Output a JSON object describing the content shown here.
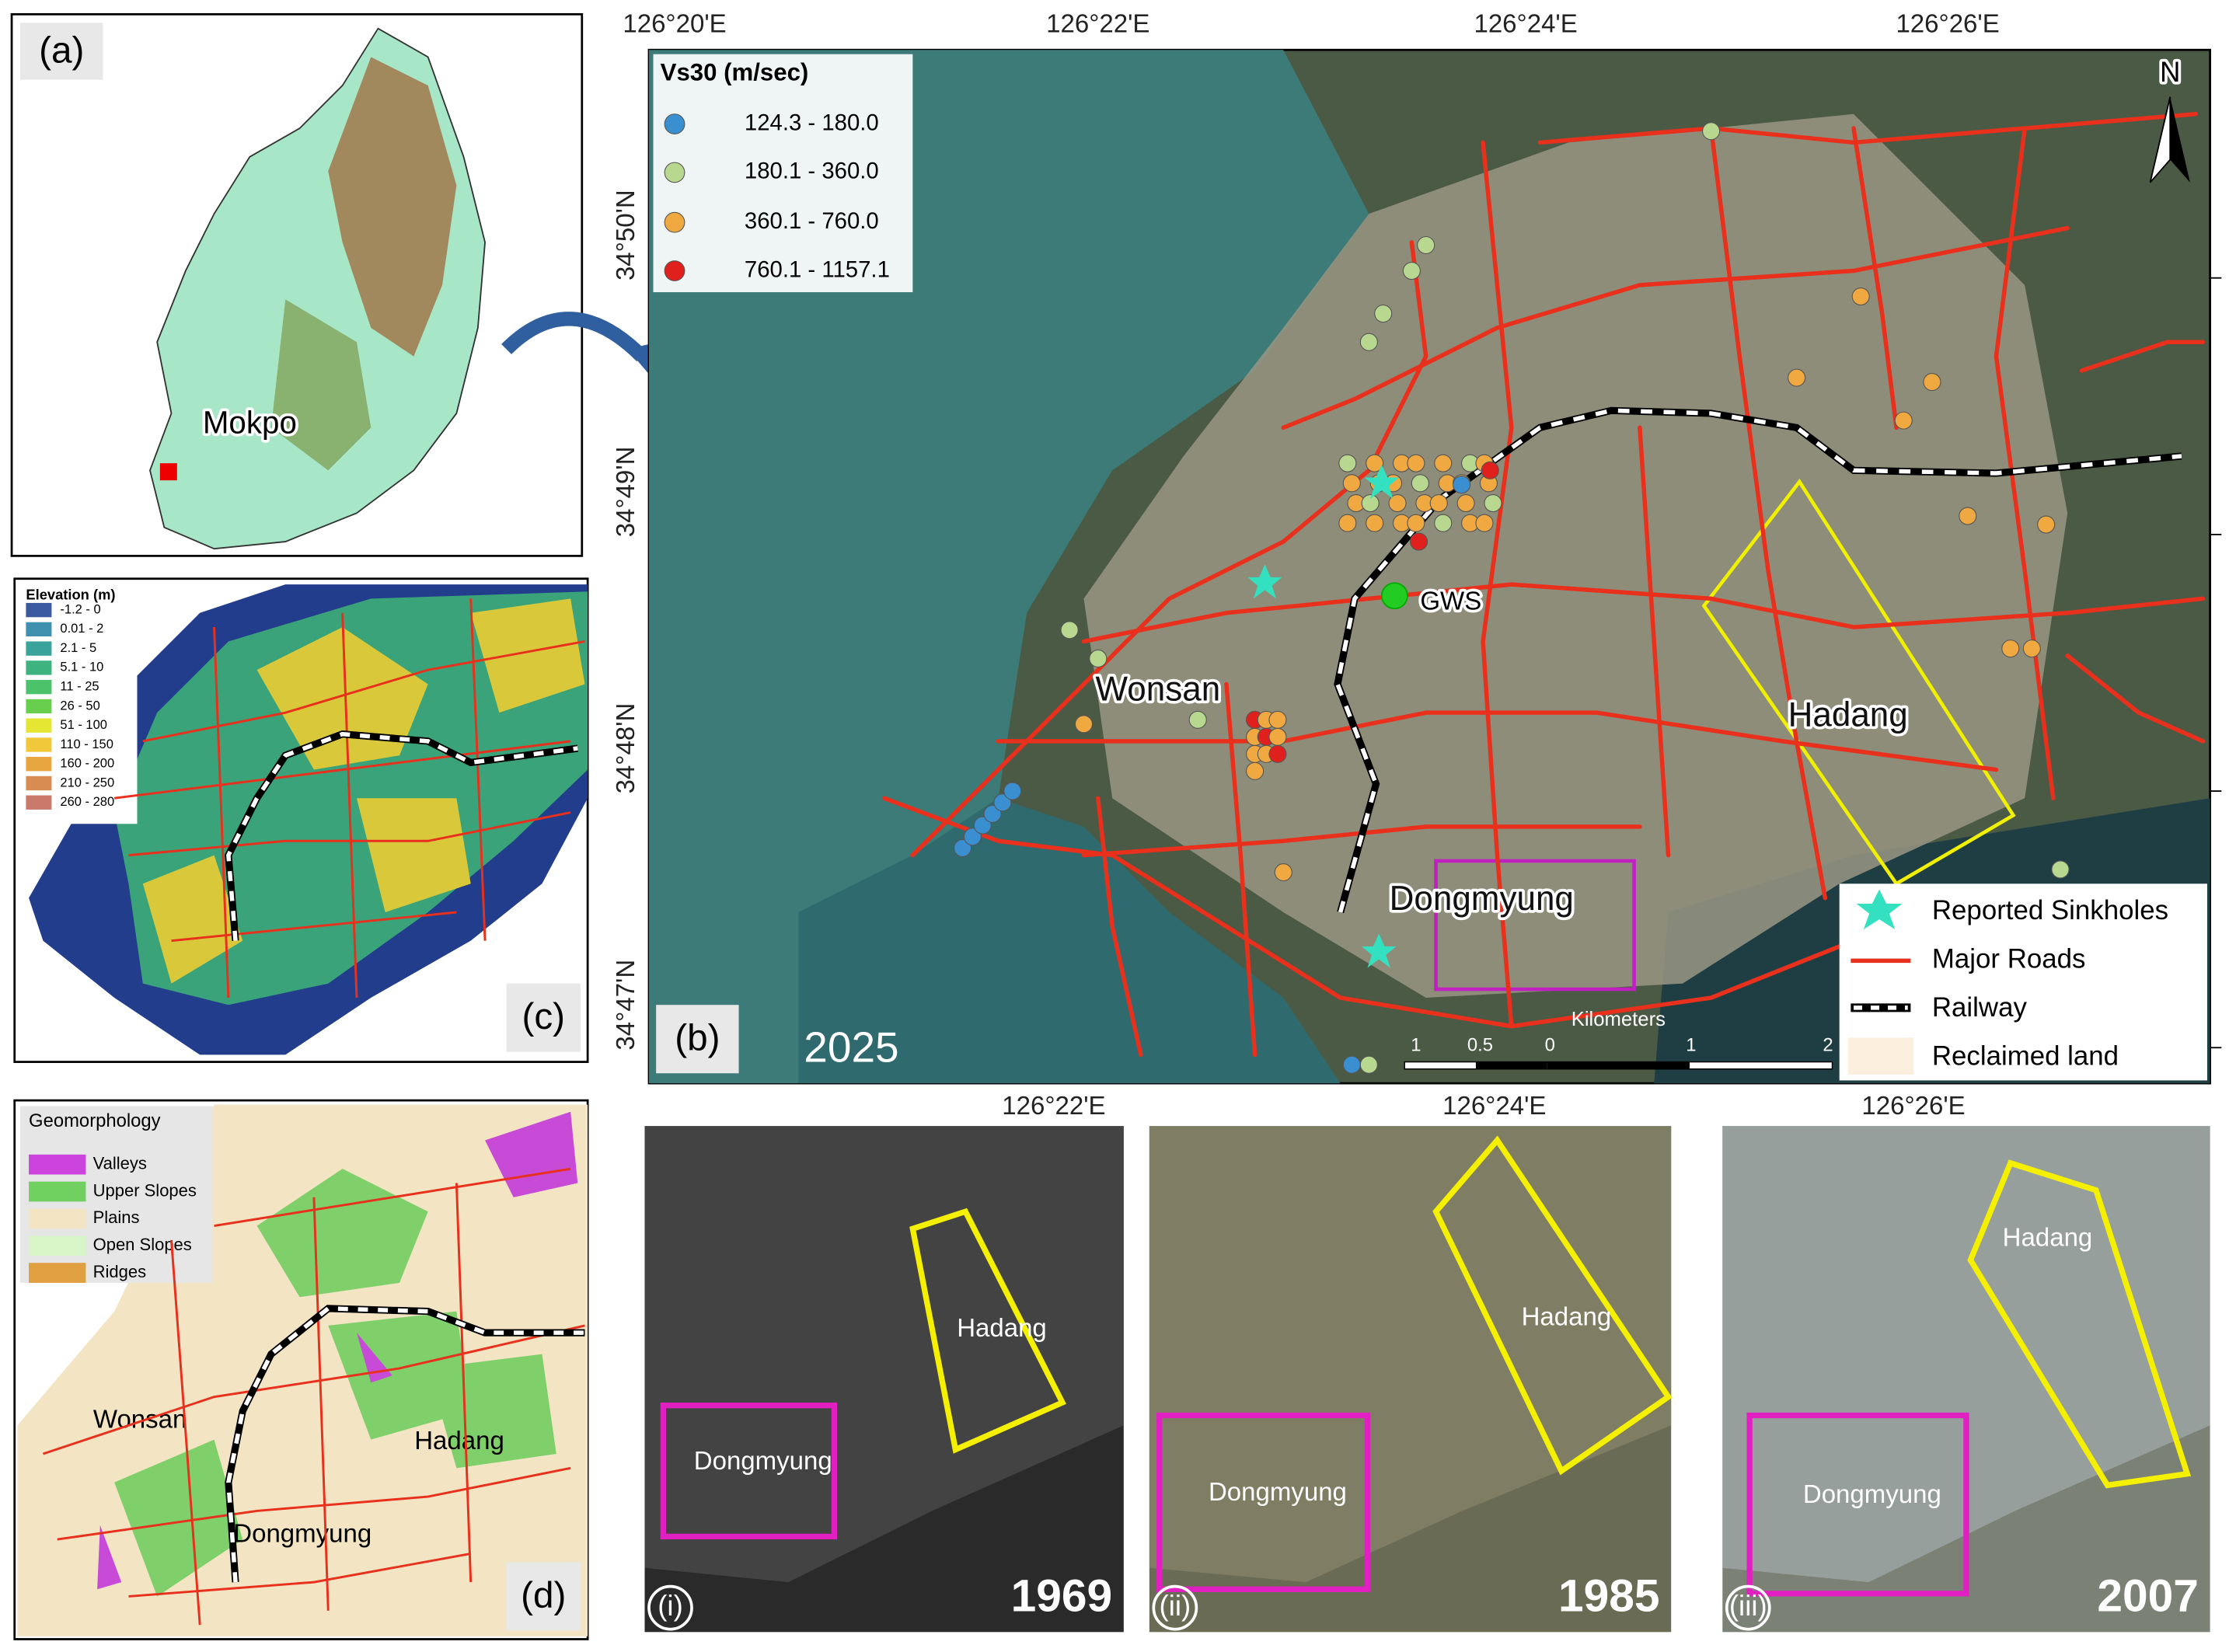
{
  "panel_a": {
    "label": "(a)",
    "place": "Mokpo"
  },
  "panel_b": {
    "label": "(b)",
    "year": "2025",
    "top_ticks": [
      "126°20'E",
      "126°22'E",
      "126°24'E",
      "126°26'E"
    ],
    "bottom_ticks": [
      "126°22'E",
      "126°24'E",
      "126°26'E"
    ],
    "left_ticks": [
      "34°50'N",
      "34°49'N",
      "34°48'N",
      "34°47'N"
    ],
    "north": "N",
    "vs30_legend": {
      "title": "Vs30 (m/sec)",
      "items": [
        "124.3 - 180.0",
        "180.1 - 360.0",
        "360.1 - 760.0",
        "760.1 - 1157.1"
      ]
    },
    "places": {
      "gws": "GWS",
      "wonsan": "Wonsan",
      "hadang": "Hadang",
      "dongmyung": "Dongmyung"
    },
    "legend": [
      "Reported Sinkholes",
      "Major Roads",
      "Railway",
      "Reclaimed land"
    ],
    "scale": {
      "title": "Kilometers",
      "labels": [
        "1",
        "0.5",
        "0",
        "1",
        "2"
      ]
    }
  },
  "panel_c": {
    "label": "(c)",
    "legend_title": "Elevation (m)",
    "items": [
      "-1.2 - 0",
      "0.01 - 2",
      "2.1 - 5",
      "5.1 - 10",
      "11 - 25",
      "26 - 50",
      "51 - 100",
      "110 - 150",
      "160 - 200",
      "210 - 250",
      "260 - 280"
    ]
  },
  "panel_d": {
    "label": "(d)",
    "legend_title": "Geomorphology",
    "items": [
      "Valleys",
      "Upper Slopes",
      "Plains",
      "Open Slopes",
      "Ridges"
    ],
    "places": {
      "wonsan": "Wonsan",
      "hadang": "Hadang",
      "dongmyung": "Dongmyung"
    }
  },
  "insets": [
    {
      "label": "(i)",
      "year": "1969",
      "hadang": "Hadang",
      "dongmyung": "Dongmyung"
    },
    {
      "label": "(ii)",
      "year": "1985",
      "hadang": "Hadang",
      "dongmyung": "Dongmyung"
    },
    {
      "label": "(iii)",
      "year": "2007",
      "hadang": "Hadang",
      "dongmyung": "Dongmyung"
    }
  ]
}
